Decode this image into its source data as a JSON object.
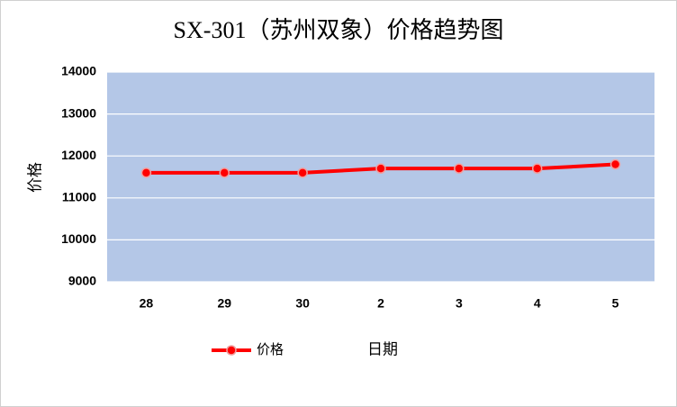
{
  "chart_data": {
    "type": "line",
    "title": "SX-301（苏州双象）价格趋势图",
    "y_label": "价格",
    "x_label": "日期",
    "categories": [
      "28",
      "29",
      "30",
      "2",
      "3",
      "4",
      "5"
    ],
    "series": [
      {
        "name": "价格",
        "color": "#ff0000",
        "values": [
          11600,
          11600,
          11600,
          11700,
          11700,
          11700,
          11800
        ]
      }
    ],
    "ylim": [
      9000,
      14000
    ],
    "yticks": [
      9000,
      10000,
      11000,
      12000,
      13000,
      14000
    ],
    "grid": true,
    "plot_background": "#b4c7e7",
    "legend": "bottom"
  }
}
